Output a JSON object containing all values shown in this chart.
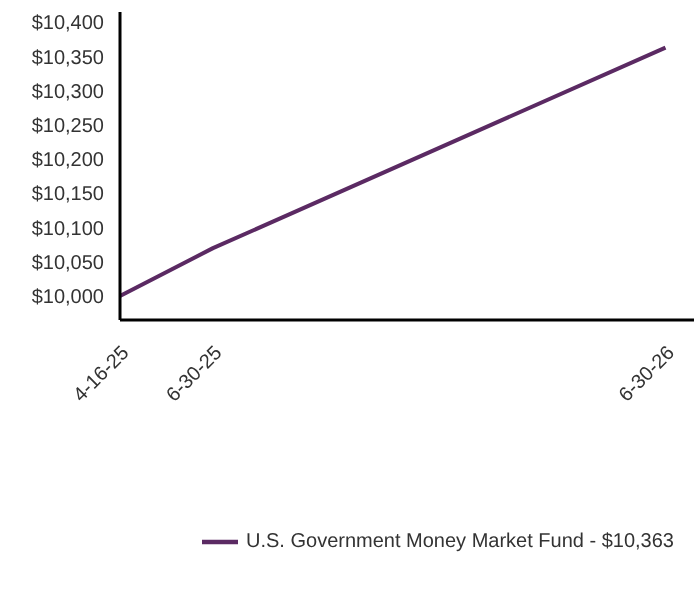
{
  "chart_data": {
    "type": "line",
    "x": [
      "2025-04-16",
      "2025-06-30",
      "2026-06-30"
    ],
    "series": [
      {
        "name": "U.S. Government Money Market Fund - $10,363",
        "color": "#5b2a63",
        "values": [
          10000,
          10070,
          10363
        ]
      }
    ],
    "xlim": [
      "2025-04-16",
      "2026-07-23"
    ],
    "xticks": [
      {
        "value": "2025-04-16",
        "label": "4-16-25"
      },
      {
        "value": "2025-06-30",
        "label": "6-30-25"
      },
      {
        "value": "2026-06-30",
        "label": "6-30-26"
      }
    ],
    "ylim": [
      9965,
      10415
    ],
    "yticks": [
      {
        "value": 10000,
        "label": "$10,000"
      },
      {
        "value": 10050,
        "label": "$10,050"
      },
      {
        "value": 10100,
        "label": "$10,100"
      },
      {
        "value": 10150,
        "label": "$10,150"
      },
      {
        "value": 10200,
        "label": "$10,200"
      },
      {
        "value": 10250,
        "label": "$10,250"
      },
      {
        "value": 10300,
        "label": "$10,300"
      },
      {
        "value": 10350,
        "label": "$10,350"
      },
      {
        "value": 10400,
        "label": "$10,400"
      }
    ],
    "grid": false,
    "legend": "bottom",
    "marker": "none",
    "line_style": "solid"
  }
}
